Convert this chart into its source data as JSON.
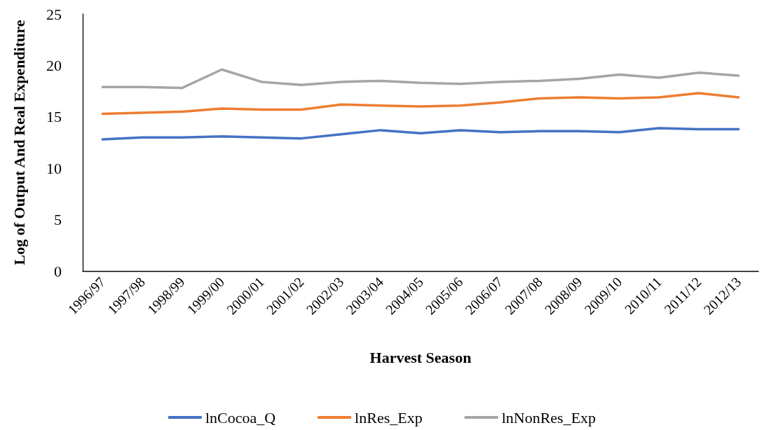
{
  "chart_data": {
    "type": "line",
    "xlabel": "Harvest Season",
    "ylabel": "Log of Output And Real Expenditure",
    "categories": [
      "1996/97",
      "1997/98",
      "1998/99",
      "1999/00",
      "2000/01",
      "2001/02",
      "2002/03",
      "2003/04",
      "2004/05",
      "2005/06",
      "2006/07",
      "2007/08",
      "2008/09",
      "2009/10",
      "2010/11",
      "2011/12",
      "2012/13"
    ],
    "series": [
      {
        "name": "lnCocoa_Q",
        "color": "#4472c4",
        "values": [
          12.8,
          13.0,
          13.0,
          13.1,
          13.0,
          12.9,
          13.3,
          13.7,
          13.4,
          13.7,
          13.5,
          13.6,
          13.6,
          13.5,
          13.9,
          13.8,
          13.8
        ]
      },
      {
        "name": "lnRes_Exp",
        "color": "#ed7d31",
        "values": [
          15.3,
          15.4,
          15.5,
          15.8,
          15.7,
          15.7,
          16.2,
          16.1,
          16.0,
          16.1,
          16.4,
          16.8,
          16.9,
          16.8,
          16.9,
          17.3,
          16.9
        ]
      },
      {
        "name": "lnNonRes_Exp",
        "color": "#a5a5a5",
        "values": [
          17.9,
          17.9,
          17.8,
          19.6,
          18.4,
          18.1,
          18.4,
          18.5,
          18.3,
          18.2,
          18.4,
          18.5,
          18.7,
          19.1,
          18.8,
          19.3,
          19.0
        ]
      }
    ],
    "ylim": [
      0,
      25
    ],
    "yticks": [
      0,
      5,
      10,
      15,
      20,
      25
    ],
    "legend": "bottom",
    "marker": "none",
    "line_style": "solid"
  }
}
